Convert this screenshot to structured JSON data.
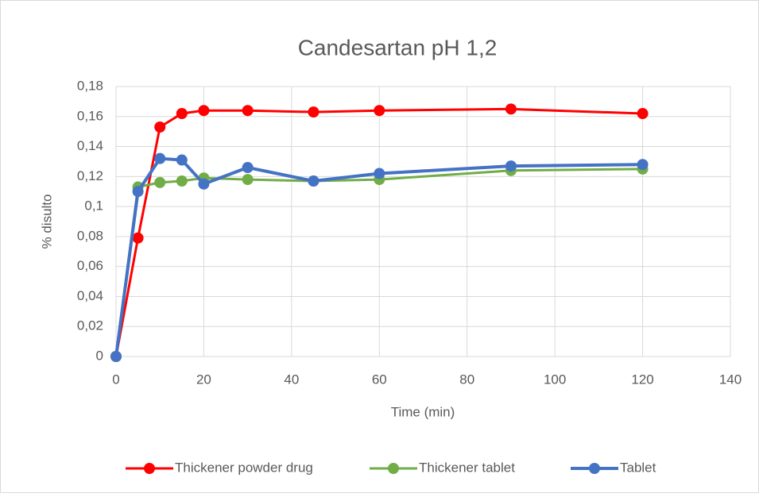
{
  "chart_data": {
    "type": "line",
    "title": "Candesartan pH 1,2",
    "x_label": "Time (min)",
    "y_label": "% disulto",
    "x": [
      0,
      5,
      10,
      15,
      20,
      30,
      45,
      60,
      90,
      120
    ],
    "series": [
      {
        "name": "Thickener powder drug",
        "color": "#ff0000",
        "values": [
          0,
          0.079,
          0.153,
          0.162,
          0.164,
          0.164,
          0.163,
          0.164,
          0.165,
          0.162
        ]
      },
      {
        "name": "Thickener tablet",
        "color": "#70ad47",
        "values": [
          0,
          0.113,
          0.116,
          0.117,
          0.119,
          0.118,
          0.117,
          0.118,
          0.124,
          0.125
        ]
      },
      {
        "name": "Tablet",
        "color": "#4472c4",
        "values": [
          0,
          0.11,
          0.132,
          0.131,
          0.115,
          0.126,
          0.117,
          0.122,
          0.127,
          0.128
        ]
      }
    ],
    "xlim": [
      0,
      140
    ],
    "xticks": [
      0,
      20,
      40,
      60,
      80,
      100,
      120,
      140
    ],
    "ylim": [
      0,
      0.18
    ],
    "yticks": [
      0,
      {
        "value": 0.02,
        "label": "0,02"
      },
      {
        "value": 0.04,
        "label": "0,04"
      },
      {
        "value": 0.06,
        "label": "0,06"
      },
      {
        "value": 0.08,
        "label": "0,08"
      },
      {
        "value": 0.1,
        "label": "0,1"
      },
      {
        "value": 0.12,
        "label": "0,12"
      },
      {
        "value": 0.14,
        "label": "0,14"
      },
      {
        "value": 0.16,
        "label": "0,16"
      },
      {
        "value": 0.18,
        "label": "0,18"
      }
    ],
    "grid": true,
    "legend": "bottom"
  }
}
